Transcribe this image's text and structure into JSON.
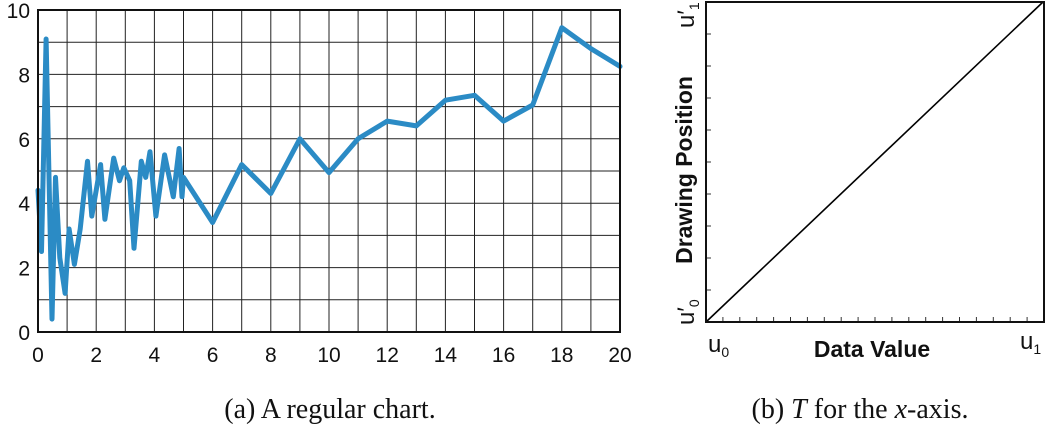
{
  "chart_data": [
    {
      "type": "line",
      "caption": "(a)  A regular chart.",
      "xlim": [
        0,
        20
      ],
      "ylim": [
        0,
        10
      ],
      "x_ticks": [
        "0",
        "2",
        "4",
        "6",
        "8",
        "10",
        "12",
        "14",
        "16",
        "18",
        "20"
      ],
      "y_ticks": [
        "0",
        "2",
        "4",
        "6",
        "8",
        "10"
      ],
      "grid": true,
      "series": [
        {
          "color": "#2b8bc5",
          "points": [
            [
              0.0,
              4.4
            ],
            [
              0.12,
              2.5
            ],
            [
              0.28,
              9.1
            ],
            [
              0.48,
              0.4
            ],
            [
              0.6,
              4.8
            ],
            [
              0.75,
              2.3
            ],
            [
              0.93,
              1.2
            ],
            [
              1.07,
              3.2
            ],
            [
              1.25,
              2.1
            ],
            [
              1.45,
              3.2
            ],
            [
              1.7,
              5.3
            ],
            [
              1.85,
              3.6
            ],
            [
              2.15,
              5.2
            ],
            [
              2.3,
              3.5
            ],
            [
              2.6,
              5.4
            ],
            [
              2.8,
              4.7
            ],
            [
              2.95,
              5.1
            ],
            [
              3.15,
              4.7
            ],
            [
              3.3,
              2.6
            ],
            [
              3.55,
              5.3
            ],
            [
              3.7,
              4.8
            ],
            [
              3.85,
              5.6
            ],
            [
              4.05,
              3.6
            ],
            [
              4.35,
              5.5
            ],
            [
              4.65,
              4.2
            ],
            [
              4.85,
              5.7
            ],
            [
              4.95,
              4.2
            ],
            [
              5.0,
              4.8
            ],
            [
              6.0,
              3.4
            ],
            [
              7.0,
              5.2
            ],
            [
              8.0,
              4.3
            ],
            [
              9.0,
              6.0
            ],
            [
              10.0,
              4.95
            ],
            [
              11.0,
              6.0
            ],
            [
              12.0,
              6.55
            ],
            [
              13.0,
              6.4
            ],
            [
              14.0,
              7.2
            ],
            [
              15.0,
              7.35
            ],
            [
              16.0,
              6.55
            ],
            [
              17.0,
              7.05
            ],
            [
              18.0,
              9.45
            ],
            [
              19.0,
              8.8
            ],
            [
              20.0,
              8.25
            ]
          ]
        }
      ]
    },
    {
      "type": "line",
      "caption_prefix": "(b)  ",
      "caption_T": "T",
      "caption_mid": " for the ",
      "caption_x": "x",
      "caption_suffix": "-axis.",
      "xlabel": "Data Value",
      "ylabel": "Drawing Position",
      "x_start": "u",
      "x_start_sub": "0",
      "x_end": "u",
      "x_end_sub": "1",
      "y_start": "u′",
      "y_start_sub": "0",
      "y_end": "u′",
      "y_end_sub": "1",
      "series": [
        {
          "color": "#000000",
          "points": [
            [
              0,
              0
            ],
            [
              1,
              1
            ]
          ]
        }
      ]
    }
  ]
}
